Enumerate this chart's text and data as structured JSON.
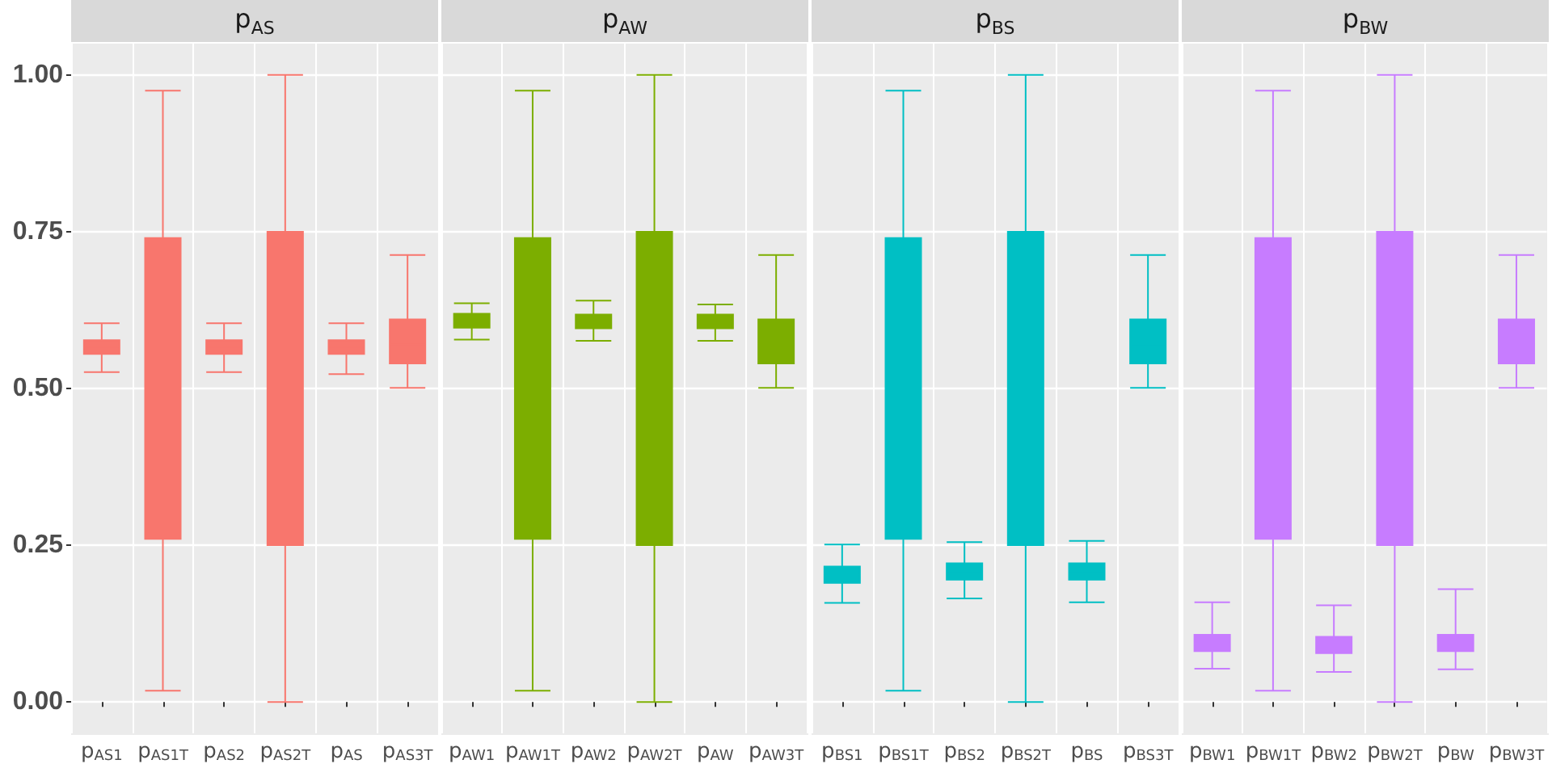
{
  "chart_data": [
    {
      "type": "box",
      "title": "p$_{AS}$",
      "categories": [
        "p$_{AS1}$",
        "p$_{AS1T}$",
        "p$_{AS2}$",
        "p$_{AS2T}$",
        "p$_{AS}$",
        "p$_{AS3T}$"
      ],
      "series": [
        {
          "color": "#f8766d",
          "boxes": [
            {
              "low": 0.526,
              "q1": 0.555,
              "median": 0.566,
              "q3": 0.577,
              "high": 0.604
            },
            {
              "low": 0.018,
              "q1": 0.26,
              "median": 0.5,
              "q3": 0.74,
              "high": 0.975
            },
            {
              "low": 0.526,
              "q1": 0.555,
              "median": 0.566,
              "q3": 0.577,
              "high": 0.604
            },
            {
              "low": 0,
              "q1": 0.25,
              "median": 0.5,
              "q3": 0.75,
              "high": 1
            },
            {
              "low": 0.523,
              "q1": 0.555,
              "median": 0.566,
              "q3": 0.577,
              "high": 0.604
            },
            {
              "low": 0.501,
              "q1": 0.54,
              "median": 0.57,
              "q3": 0.61,
              "high": 0.713
            }
          ]
        }
      ],
      "ylim": [
        -0.05,
        1.05
      ],
      "yticks": [
        {
          "value": 0,
          "label": "0.00"
        },
        {
          "value": 0.25,
          "label": "0.25"
        },
        {
          "value": 0.5,
          "label": "0.50"
        },
        {
          "value": 0.75,
          "label": "0.75"
        },
        {
          "value": 1,
          "label": "1.00"
        }
      ],
      "grid": true
    },
    {
      "type": "box",
      "title": "p$_{AW}$",
      "categories": [
        "p$_{AW1}$",
        "p$_{AW1T}$",
        "p$_{AW2}$",
        "p$_{AW2T}$",
        "p$_{AW}$",
        "p$_{AW3T}$"
      ],
      "series": [
        {
          "color": "#7cae00",
          "boxes": [
            {
              "low": 0.578,
              "q1": 0.597,
              "median": 0.608,
              "q3": 0.619,
              "high": 0.636
            },
            {
              "low": 0.018,
              "q1": 0.26,
              "median": 0.5,
              "q3": 0.74,
              "high": 0.975
            },
            {
              "low": 0.576,
              "q1": 0.596,
              "median": 0.607,
              "q3": 0.618,
              "high": 0.64
            },
            {
              "low": 0,
              "q1": 0.25,
              "median": 0.5,
              "q3": 0.75,
              "high": 1
            },
            {
              "low": 0.576,
              "q1": 0.596,
              "median": 0.607,
              "q3": 0.618,
              "high": 0.634
            },
            {
              "low": 0.501,
              "q1": 0.54,
              "median": 0.57,
              "q3": 0.61,
              "high": 0.713
            }
          ]
        }
      ],
      "ylim": [
        -0.05,
        1.05
      ],
      "yticks": [
        0,
        0.25,
        0.5,
        0.75,
        1
      ],
      "grid": true,
      "tick_labels": "x"
    },
    {
      "type": "box",
      "title": "p$_{BS}$",
      "categories": [
        "p$_{BS1}$",
        "p$_{BS1T}$",
        "p$_{BS2}$",
        "p$_{BS2T}$",
        "p$_{BS}$",
        "p$_{BS3T}$"
      ],
      "series": [
        {
          "color": "#00bfc4",
          "boxes": [
            {
              "low": 0.158,
              "q1": 0.19,
              "median": 0.203,
              "q3": 0.216,
              "high": 0.251
            },
            {
              "low": 0.018,
              "q1": 0.26,
              "median": 0.5,
              "q3": 0.74,
              "high": 0.975
            },
            {
              "low": 0.165,
              "q1": 0.195,
              "median": 0.208,
              "q3": 0.221,
              "high": 0.255
            },
            {
              "low": 0,
              "q1": 0.25,
              "median": 0.5,
              "q3": 0.75,
              "high": 1
            },
            {
              "low": 0.159,
              "q1": 0.195,
              "median": 0.208,
              "q3": 0.221,
              "high": 0.257
            },
            {
              "low": 0.501,
              "q1": 0.54,
              "median": 0.57,
              "q3": 0.61,
              "high": 0.713
            }
          ]
        }
      ],
      "ylim": [
        -0.05,
        1.05
      ],
      "yticks": [
        0,
        0.25,
        0.5,
        0.75,
        1
      ],
      "grid": true,
      "tick_labels": "x"
    },
    {
      "type": "box",
      "title": "p$_{BW}$",
      "categories": [
        "p$_{BW1}$",
        "p$_{BW1T}$",
        "p$_{BW2}$",
        "p$_{BW2T}$",
        "p$_{BW}$",
        "p$_{BW3T}$"
      ],
      "series": [
        {
          "color": "#c77cff",
          "boxes": [
            {
              "low": 0.053,
              "q1": 0.081,
              "median": 0.094,
              "q3": 0.107,
              "high": 0.159
            },
            {
              "low": 0.018,
              "q1": 0.26,
              "median": 0.5,
              "q3": 0.74,
              "high": 0.975
            },
            {
              "low": 0.048,
              "q1": 0.078,
              "median": 0.091,
              "q3": 0.104,
              "high": 0.154
            },
            {
              "low": 0,
              "q1": 0.25,
              "median": 0.5,
              "q3": 0.75,
              "high": 1
            },
            {
              "low": 0.052,
              "q1": 0.081,
              "median": 0.094,
              "q3": 0.107,
              "high": 0.18
            },
            {
              "low": 0.501,
              "q1": 0.54,
              "median": 0.57,
              "q3": 0.61,
              "high": 0.713
            }
          ]
        }
      ],
      "ylim": [
        -0.05,
        1.05
      ],
      "yticks": [
        0,
        0.25,
        0.5,
        0.75,
        1
      ],
      "grid": true,
      "tick_labels": "x"
    }
  ]
}
